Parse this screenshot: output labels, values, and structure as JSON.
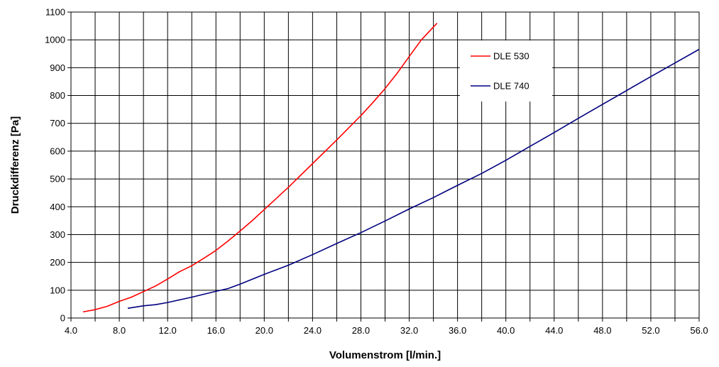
{
  "chart_data": {
    "type": "line",
    "title": "",
    "xlabel": "Volumenstrom [l/min.]",
    "ylabel": "Druckdifferenz [Pa]",
    "xlim": [
      4.0,
      56.0
    ],
    "ylim": [
      0,
      1100
    ],
    "xticks": [
      4.0,
      8.0,
      12.0,
      16.0,
      20.0,
      24.0,
      28.0,
      32.0,
      36.0,
      40.0,
      44.0,
      48.0,
      52.0,
      56.0
    ],
    "xtick_labels": [
      "4.0",
      "8.0",
      "12.0",
      "16.0",
      "20.0",
      "24.0",
      "28.0",
      "32.0",
      "36.0",
      "40.0",
      "44.0",
      "48.0",
      "52.0",
      "56.0"
    ],
    "yticks": [
      0,
      100,
      200,
      300,
      400,
      500,
      600,
      700,
      800,
      900,
      1000,
      1100
    ],
    "ytick_labels": [
      "0",
      "100",
      "200",
      "300",
      "400",
      "500",
      "600",
      "700",
      "800",
      "900",
      "1000",
      "1100"
    ],
    "grid": true,
    "legend_position": "top-right",
    "series": [
      {
        "name": "DLE 530",
        "color": "#ff0000",
        "points": [
          [
            5.0,
            22
          ],
          [
            6.0,
            30
          ],
          [
            7.0,
            42
          ],
          [
            8.0,
            60
          ],
          [
            9.0,
            75
          ],
          [
            10.0,
            95
          ],
          [
            11.0,
            115
          ],
          [
            12.0,
            140
          ],
          [
            13.0,
            167
          ],
          [
            14.0,
            188
          ],
          [
            15.0,
            215
          ],
          [
            16.0,
            243
          ],
          [
            17.0,
            277
          ],
          [
            18.0,
            313
          ],
          [
            19.0,
            350
          ],
          [
            20.0,
            390
          ],
          [
            22.0,
            470
          ],
          [
            24.0,
            555
          ],
          [
            26.0,
            640
          ],
          [
            28.0,
            728
          ],
          [
            29.0,
            775
          ],
          [
            30.0,
            825
          ],
          [
            31.0,
            880
          ],
          [
            32.0,
            940
          ],
          [
            33.0,
            1000
          ],
          [
            34.3,
            1060
          ]
        ]
      },
      {
        "name": "DLE 740",
        "color": "#000080",
        "points": [
          [
            8.7,
            35
          ],
          [
            10.0,
            44
          ],
          [
            11.0,
            48
          ],
          [
            12.0,
            56
          ],
          [
            14.0,
            75
          ],
          [
            16.0,
            96
          ],
          [
            17.0,
            106
          ],
          [
            18.0,
            122
          ],
          [
            20.0,
            157
          ],
          [
            22.0,
            190
          ],
          [
            24.0,
            228
          ],
          [
            26.0,
            268
          ],
          [
            28.0,
            307
          ],
          [
            30.0,
            349
          ],
          [
            32.0,
            392
          ],
          [
            34.0,
            433
          ],
          [
            36.0,
            477
          ],
          [
            38.0,
            520
          ],
          [
            40.0,
            567
          ],
          [
            42.0,
            617
          ],
          [
            44.0,
            667
          ],
          [
            46.0,
            718
          ],
          [
            48.0,
            768
          ],
          [
            50.0,
            818
          ],
          [
            52.0,
            868
          ],
          [
            54.0,
            917
          ],
          [
            56.0,
            966
          ]
        ]
      }
    ]
  }
}
